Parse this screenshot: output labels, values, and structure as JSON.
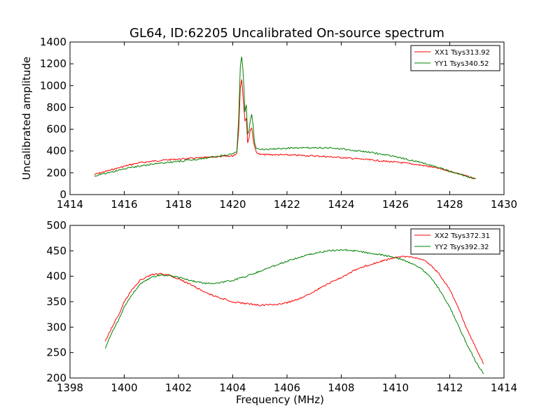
{
  "figure": {
    "title": "GL64, ID:62205 Uncalibrated On-source spectrum"
  },
  "chart_data": [
    {
      "type": "line",
      "title": "GL64, ID:62205 Uncalibrated On-source spectrum",
      "xlabel": "",
      "ylabel": "Uncalibrated amplitude",
      "xlim": [
        1414,
        1430
      ],
      "ylim": [
        0,
        1400
      ],
      "xticks": [
        "1414",
        "1416",
        "1418",
        "1420",
        "1422",
        "1424",
        "1426",
        "1428",
        "1430"
      ],
      "yticks": [
        "0",
        "200",
        "400",
        "600",
        "800",
        "1000",
        "1200",
        "1400"
      ],
      "grid": false,
      "legend": "top-right",
      "series": [
        {
          "name": "XX1 Tsys313.92",
          "color": "#ff0000",
          "x": [
            1414.9,
            1415.5,
            1416.0,
            1416.5,
            1417.0,
            1417.5,
            1418.0,
            1418.5,
            1419.0,
            1419.5,
            1420.0,
            1420.15,
            1420.22,
            1420.28,
            1420.33,
            1420.38,
            1420.45,
            1420.5,
            1420.55,
            1420.6,
            1420.65,
            1420.7,
            1420.75,
            1420.8,
            1420.87,
            1421.0,
            1421.5,
            1422.0,
            1422.5,
            1423.0,
            1423.5,
            1424.0,
            1424.5,
            1425.0,
            1425.5,
            1426.0,
            1426.5,
            1427.0,
            1427.5,
            1428.0,
            1428.5,
            1428.95
          ],
          "y": [
            185,
            225,
            260,
            290,
            305,
            318,
            325,
            333,
            340,
            348,
            355,
            380,
            600,
            980,
            1060,
            900,
            680,
            700,
            480,
            520,
            600,
            610,
            520,
            440,
            390,
            368,
            366,
            364,
            360,
            355,
            348,
            340,
            330,
            320,
            308,
            298,
            285,
            268,
            245,
            215,
            180,
            145
          ]
        },
        {
          "name": "YY1 Tsys340.52",
          "color": "#008000",
          "x": [
            1414.9,
            1415.5,
            1416.0,
            1416.5,
            1417.0,
            1417.5,
            1418.0,
            1418.5,
            1419.0,
            1419.5,
            1420.0,
            1420.15,
            1420.22,
            1420.28,
            1420.33,
            1420.38,
            1420.45,
            1420.5,
            1420.55,
            1420.6,
            1420.65,
            1420.7,
            1420.75,
            1420.8,
            1420.87,
            1421.0,
            1421.5,
            1422.0,
            1422.5,
            1423.0,
            1423.5,
            1424.0,
            1424.5,
            1425.0,
            1425.5,
            1426.0,
            1426.5,
            1427.0,
            1427.5,
            1428.0,
            1428.5,
            1428.95
          ],
          "y": [
            170,
            205,
            235,
            260,
            278,
            293,
            305,
            318,
            335,
            352,
            372,
            400,
            700,
            1180,
            1260,
            1140,
            760,
            830,
            560,
            580,
            690,
            740,
            640,
            480,
            420,
            415,
            418,
            425,
            430,
            432,
            428,
            420,
            405,
            390,
            370,
            348,
            320,
            290,
            255,
            215,
            175,
            148
          ]
        }
      ]
    },
    {
      "type": "line",
      "title": "",
      "xlabel": "Frequency (MHz)",
      "ylabel": "",
      "xlim": [
        1398,
        1414
      ],
      "ylim": [
        200,
        500
      ],
      "xticks": [
        "1398",
        "1400",
        "1402",
        "1404",
        "1406",
        "1408",
        "1410",
        "1412",
        "1414"
      ],
      "yticks": [
        "200",
        "250",
        "300",
        "350",
        "400",
        "450",
        "500"
      ],
      "grid": false,
      "legend": "top-right",
      "series": [
        {
          "name": "XX2 Tsys372.31",
          "color": "#ff0000",
          "x": [
            1399.3,
            1399.5,
            1399.8,
            1400.0,
            1400.3,
            1400.6,
            1401.0,
            1401.3,
            1401.6,
            1402.0,
            1402.5,
            1403.0,
            1403.5,
            1404.0,
            1404.5,
            1405.0,
            1405.5,
            1406.0,
            1406.5,
            1407.0,
            1407.5,
            1408.0,
            1408.5,
            1409.0,
            1409.5,
            1410.0,
            1410.3,
            1410.6,
            1411.0,
            1411.3,
            1411.6,
            1412.0,
            1412.3,
            1412.6,
            1413.0,
            1413.25
          ],
          "y": [
            272,
            295,
            325,
            350,
            375,
            393,
            403,
            405,
            403,
            395,
            382,
            368,
            358,
            350,
            346,
            343,
            344,
            348,
            357,
            370,
            385,
            398,
            412,
            422,
            430,
            437,
            439,
            438,
            433,
            422,
            405,
            375,
            340,
            300,
            255,
            228
          ]
        },
        {
          "name": "YY2 Tsys392.32",
          "color": "#008000",
          "x": [
            1399.3,
            1399.5,
            1399.8,
            1400.0,
            1400.3,
            1400.6,
            1401.0,
            1401.3,
            1401.6,
            1402.0,
            1402.5,
            1403.0,
            1403.5,
            1404.0,
            1404.5,
            1405.0,
            1405.5,
            1406.0,
            1406.5,
            1407.0,
            1407.5,
            1408.0,
            1408.5,
            1409.0,
            1409.5,
            1410.0,
            1410.3,
            1410.6,
            1411.0,
            1411.3,
            1411.6,
            1412.0,
            1412.3,
            1412.6,
            1413.0,
            1413.25
          ],
          "y": [
            257,
            285,
            315,
            340,
            365,
            385,
            398,
            402,
            402,
            398,
            391,
            386,
            387,
            392,
            400,
            410,
            420,
            430,
            438,
            445,
            450,
            452,
            450,
            446,
            442,
            437,
            432,
            425,
            413,
            398,
            375,
            340,
            305,
            270,
            228,
            208
          ]
        }
      ]
    }
  ]
}
